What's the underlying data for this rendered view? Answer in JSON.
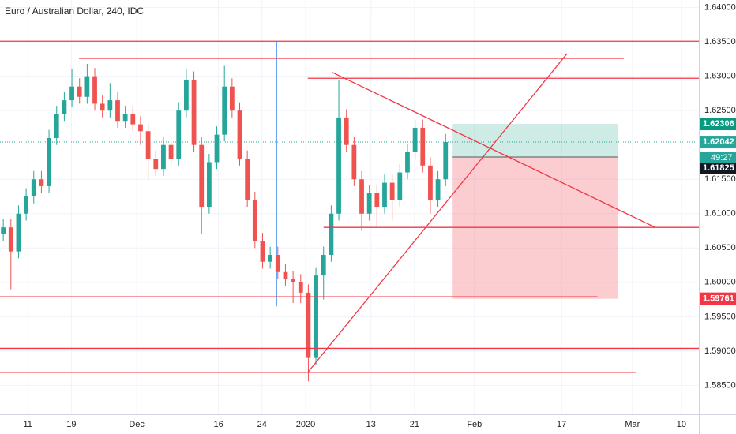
{
  "chart_data": {
    "type": "candlestick",
    "title": "Euro / Australian Dollar, 240, IDC",
    "xlim": [
      4.9,
      133.2
    ],
    "ylim": [
      1.5808,
      1.6411
    ],
    "xticks": [
      {
        "value": 10,
        "label": "11"
      },
      {
        "value": 18,
        "label": "19"
      },
      {
        "value": 30,
        "label": "Dec"
      },
      {
        "value": 45,
        "label": "16"
      },
      {
        "value": 53,
        "label": "24"
      },
      {
        "value": 61,
        "label": "2020"
      },
      {
        "value": 73,
        "label": "13"
      },
      {
        "value": 81,
        "label": "21"
      },
      {
        "value": 92,
        "label": "Feb"
      },
      {
        "value": 108,
        "label": "17"
      },
      {
        "value": 121,
        "label": "Mar"
      },
      {
        "value": 130,
        "label": "10"
      }
    ],
    "yticks": [
      {
        "value": 1.64,
        "label": "1.64000"
      },
      {
        "value": 1.635,
        "label": "1.63500"
      },
      {
        "value": 1.63,
        "label": "1.63000"
      },
      {
        "value": 1.625,
        "label": "1.62500"
      },
      {
        "value": 1.615,
        "label": "1.61500"
      },
      {
        "value": 1.61,
        "label": "1.61000"
      },
      {
        "value": 1.605,
        "label": "1.60500"
      },
      {
        "value": 1.6,
        "label": "1.60000"
      },
      {
        "value": 1.595,
        "label": "1.59500"
      },
      {
        "value": 1.59,
        "label": "1.59000"
      },
      {
        "value": 1.585,
        "label": "1.58500"
      }
    ],
    "grid": true,
    "up_color": "#26a69a",
    "down_color": "#ef5350",
    "x": [
      5.5,
      6.9,
      8.3,
      9.7,
      11.1,
      12.5,
      13.9,
      15.3,
      16.7,
      18.1,
      19.5,
      20.9,
      22.3,
      23.7,
      25.1,
      26.5,
      27.9,
      29.3,
      30.7,
      32.1,
      33.5,
      34.9,
      36.3,
      37.7,
      39.1,
      40.5,
      41.9,
      43.3,
      44.7,
      46.1,
      47.5,
      48.9,
      50.3,
      51.7,
      53.1,
      54.5,
      55.9,
      57.3,
      58.7,
      60.1,
      61.5,
      62.9,
      64.3,
      65.7,
      67.1,
      68.5,
      69.9,
      71.3,
      72.7,
      74.1,
      75.5,
      76.9,
      78.3,
      79.7,
      81.1,
      82.5,
      83.9,
      85.3,
      86.7
    ],
    "open": [
      1.607,
      1.608,
      1.6045,
      1.61,
      1.6125,
      1.615,
      1.614,
      1.621,
      1.6245,
      1.6265,
      1.6285,
      1.627,
      1.63,
      1.626,
      1.625,
      1.6265,
      1.6235,
      1.6245,
      1.623,
      1.622,
      1.618,
      1.6165,
      1.62,
      1.618,
      1.625,
      1.6295,
      1.62,
      1.611,
      1.6175,
      1.6215,
      1.6285,
      1.625,
      1.618,
      1.612,
      1.606,
      1.603,
      1.604,
      1.6015,
      1.6005,
      1.6,
      1.5985,
      1.589,
      1.601,
      1.604,
      1.61,
      1.624,
      1.62,
      1.615,
      1.61,
      1.613,
      1.611,
      1.6145,
      1.612,
      1.616,
      1.619,
      1.6225,
      1.617,
      1.612,
      1.615
    ],
    "high": [
      1.6092,
      1.6092,
      1.6112,
      1.6137,
      1.6162,
      1.6162,
      1.6222,
      1.6257,
      1.6277,
      1.631,
      1.6297,
      1.6318,
      1.6312,
      1.6272,
      1.629,
      1.6277,
      1.6257,
      1.6257,
      1.6242,
      1.6232,
      1.6192,
      1.6212,
      1.6212,
      1.6262,
      1.631,
      1.6307,
      1.6212,
      1.6187,
      1.6227,
      1.6315,
      1.6297,
      1.6262,
      1.6192,
      1.6132,
      1.6072,
      1.6052,
      1.6052,
      1.6027,
      1.6017,
      1.6012,
      1.5997,
      1.6022,
      1.6052,
      1.6112,
      1.6295,
      1.6252,
      1.6212,
      1.6162,
      1.6142,
      1.6142,
      1.6157,
      1.6157,
      1.6172,
      1.6202,
      1.6237,
      1.6237,
      1.6182,
      1.6162,
      1.6216
    ],
    "low": [
      1.606,
      1.599,
      1.6035,
      1.609,
      1.6115,
      1.613,
      1.613,
      1.62,
      1.6235,
      1.6255,
      1.626,
      1.626,
      1.625,
      1.624,
      1.624,
      1.6225,
      1.6225,
      1.622,
      1.62,
      1.615,
      1.6155,
      1.6155,
      1.617,
      1.617,
      1.624,
      1.619,
      1.607,
      1.61,
      1.6165,
      1.6205,
      1.624,
      1.617,
      1.611,
      1.605,
      1.602,
      1.602,
      1.6005,
      1.5995,
      1.597,
      1.597,
      1.5856,
      1.588,
      1.5975,
      1.603,
      1.609,
      1.619,
      1.614,
      1.6075,
      1.609,
      1.608,
      1.61,
      1.609,
      1.611,
      1.615,
      1.618,
      1.616,
      1.61,
      1.611,
      1.614
    ],
    "close": [
      1.608,
      1.6045,
      1.61,
      1.6125,
      1.615,
      1.614,
      1.621,
      1.6245,
      1.6265,
      1.6285,
      1.627,
      1.63,
      1.626,
      1.625,
      1.6265,
      1.6235,
      1.6245,
      1.623,
      1.622,
      1.618,
      1.6165,
      1.62,
      1.618,
      1.625,
      1.6295,
      1.62,
      1.611,
      1.6175,
      1.6215,
      1.6285,
      1.625,
      1.618,
      1.612,
      1.606,
      1.603,
      1.604,
      1.6015,
      1.6005,
      1.6,
      1.5985,
      1.589,
      1.601,
      1.604,
      1.61,
      1.624,
      1.62,
      1.615,
      1.61,
      1.613,
      1.611,
      1.6145,
      1.612,
      1.616,
      1.619,
      1.6225,
      1.617,
      1.612,
      1.615,
      1.62042
    ],
    "line_color": "#f23645",
    "lines": [
      {
        "x": [
          4.9,
          133.2
        ],
        "y": [
          1.6351,
          1.6351
        ]
      },
      {
        "x": [
          19.4,
          119.4
        ],
        "y": [
          1.6326,
          1.6326
        ]
      },
      {
        "x": [
          61.4,
          133.2
        ],
        "y": [
          1.6297,
          1.6297
        ]
      },
      {
        "x": [
          65.8,
          125.2
        ],
        "y": [
          1.6306,
          1.608
        ]
      },
      {
        "x": [
          64.3,
          133.2
        ],
        "y": [
          1.608,
          1.608
        ]
      },
      {
        "x": [
          4.9,
          114.6
        ],
        "y": [
          1.5979,
          1.5979
        ]
      },
      {
        "x": [
          4.9,
          133.2
        ],
        "y": [
          1.5904,
          1.5904
        ]
      },
      {
        "x": [
          4.9,
          121.6
        ],
        "y": [
          1.5869,
          1.5869
        ]
      },
      {
        "x": [
          61.4,
          109.0
        ],
        "y": [
          1.5869,
          1.6333
        ]
      }
    ],
    "vertical_line": {
      "x": 55.7,
      "y": [
        1.6351,
        1.5965
      ],
      "color": "#5b9cf6"
    },
    "position": {
      "x": [
        88,
        118.4
      ],
      "entry": 1.61825,
      "target": 1.62306,
      "stop": 1.59761
    },
    "last_price": 1.62042,
    "countdown": "49:27",
    "last_color": "#26a69a",
    "target_color": "#089981",
    "stop_color": "#f23645",
    "entry_color": "#131722"
  }
}
